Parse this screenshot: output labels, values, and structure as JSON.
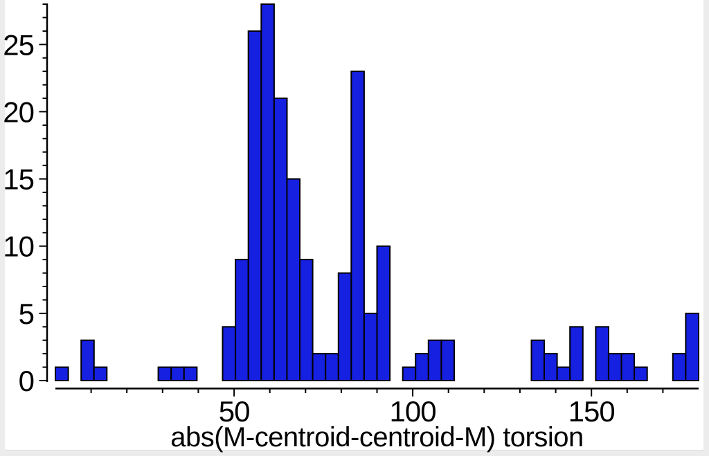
{
  "page": {
    "background": "#ececec",
    "plot_background": "#ffffff"
  },
  "chart_data": {
    "type": "bar",
    "subtype": "histogram",
    "title": "",
    "xlabel": "abs(M-centroid-centroid-M) torsion",
    "ylabel": "",
    "xlim": [
      0,
      180
    ],
    "ylim": [
      0,
      28
    ],
    "x_major_ticks": [
      50,
      100,
      150
    ],
    "x_minor_tick_step": 10,
    "y_major_ticks": [
      0,
      5,
      10,
      15,
      20,
      25
    ],
    "y_minor_tick_step": 1,
    "grid": false,
    "legend": false,
    "bar_color": "#1520e0",
    "bar_edge_color": "#000000",
    "axis_color": "#000000",
    "bin_width": 3.6,
    "bins": [
      {
        "start": 0,
        "count": 1
      },
      {
        "start": 7.2,
        "count": 3
      },
      {
        "start": 10.8,
        "count": 1
      },
      {
        "start": 28.8,
        "count": 1
      },
      {
        "start": 32.4,
        "count": 1
      },
      {
        "start": 36,
        "count": 1
      },
      {
        "start": 46.8,
        "count": 4
      },
      {
        "start": 50.4,
        "count": 9
      },
      {
        "start": 54,
        "count": 26
      },
      {
        "start": 57.6,
        "count": 28
      },
      {
        "start": 61.2,
        "count": 21
      },
      {
        "start": 64.8,
        "count": 15
      },
      {
        "start": 68.4,
        "count": 9
      },
      {
        "start": 72,
        "count": 2
      },
      {
        "start": 75.6,
        "count": 2
      },
      {
        "start": 79.2,
        "count": 8
      },
      {
        "start": 82.8,
        "count": 23
      },
      {
        "start": 86.4,
        "count": 5
      },
      {
        "start": 90,
        "count": 10
      },
      {
        "start": 97.2,
        "count": 1
      },
      {
        "start": 100.8,
        "count": 2
      },
      {
        "start": 104.4,
        "count": 3
      },
      {
        "start": 108,
        "count": 3
      },
      {
        "start": 133.2,
        "count": 3
      },
      {
        "start": 136.8,
        "count": 2
      },
      {
        "start": 140.4,
        "count": 1
      },
      {
        "start": 144,
        "count": 4
      },
      {
        "start": 151.2,
        "count": 4
      },
      {
        "start": 154.8,
        "count": 2
      },
      {
        "start": 158.4,
        "count": 2
      },
      {
        "start": 162,
        "count": 1
      },
      {
        "start": 172.8,
        "count": 2
      },
      {
        "start": 176.4,
        "count": 5
      }
    ]
  }
}
